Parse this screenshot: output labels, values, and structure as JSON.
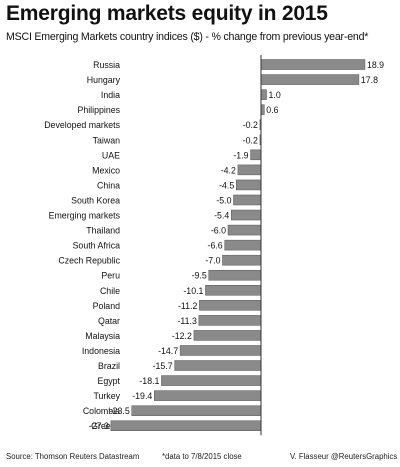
{
  "title": "Emerging markets equity in 2015",
  "subtitle": "MSCI Emerging Markets country indices ($) - % change from previous year-end*",
  "footer": {
    "source": "Source: Thomson Reuters Datastream",
    "note": "*data to 7/8/2015 close",
    "credit": "V. Flasseur @ReutersGraphics"
  },
  "chart_data": {
    "type": "bar",
    "orientation": "horizontal",
    "title": "Emerging markets equity in 2015",
    "subtitle": "MSCI Emerging Markets country indices ($) - % change from previous year-end*",
    "categories": [
      "Russia",
      "Hungary",
      "India",
      "Philippines",
      "Developed markets",
      "Taiwan",
      "UAE",
      "Mexico",
      "China",
      "South Korea",
      "Emerging markets",
      "Thailand",
      "South Africa",
      "Czech Republic",
      "Peru",
      "Chile",
      "Poland",
      "Qatar",
      "Malaysia",
      "Indonesia",
      "Brazil",
      "Egypt",
      "Turkey",
      "Colombia",
      "Greece"
    ],
    "values": [
      18.9,
      17.8,
      1.0,
      0.6,
      -0.2,
      -0.2,
      -1.9,
      -4.2,
      -4.5,
      -5.0,
      -5.4,
      -6.0,
      -6.6,
      -7.0,
      -9.5,
      -10.1,
      -11.2,
      -11.3,
      -12.2,
      -14.7,
      -15.7,
      -18.1,
      -19.4,
      -23.5,
      -27.3
    ],
    "data_labels": [
      "18.9",
      "17.8",
      "1.0",
      "0.6",
      "-0.2",
      "-0.2",
      "-1.9",
      "-4.2",
      "-4.5",
      "-5.0",
      "-5.4",
      "-6.0",
      "-6.6",
      "-7.0",
      "-9.5",
      "-10.1",
      "-11.2",
      "-11.3",
      "-12.2",
      "-14.7",
      "-15.7",
      "-18.1",
      "-19.4",
      "-23.5",
      "-27.3"
    ],
    "xlim": [
      -27.3,
      18.9
    ],
    "grid": false,
    "legend": "none",
    "colors": {
      "bar": "#8a8a8a",
      "bar_edge": "#555555",
      "axis": "#333333"
    }
  }
}
